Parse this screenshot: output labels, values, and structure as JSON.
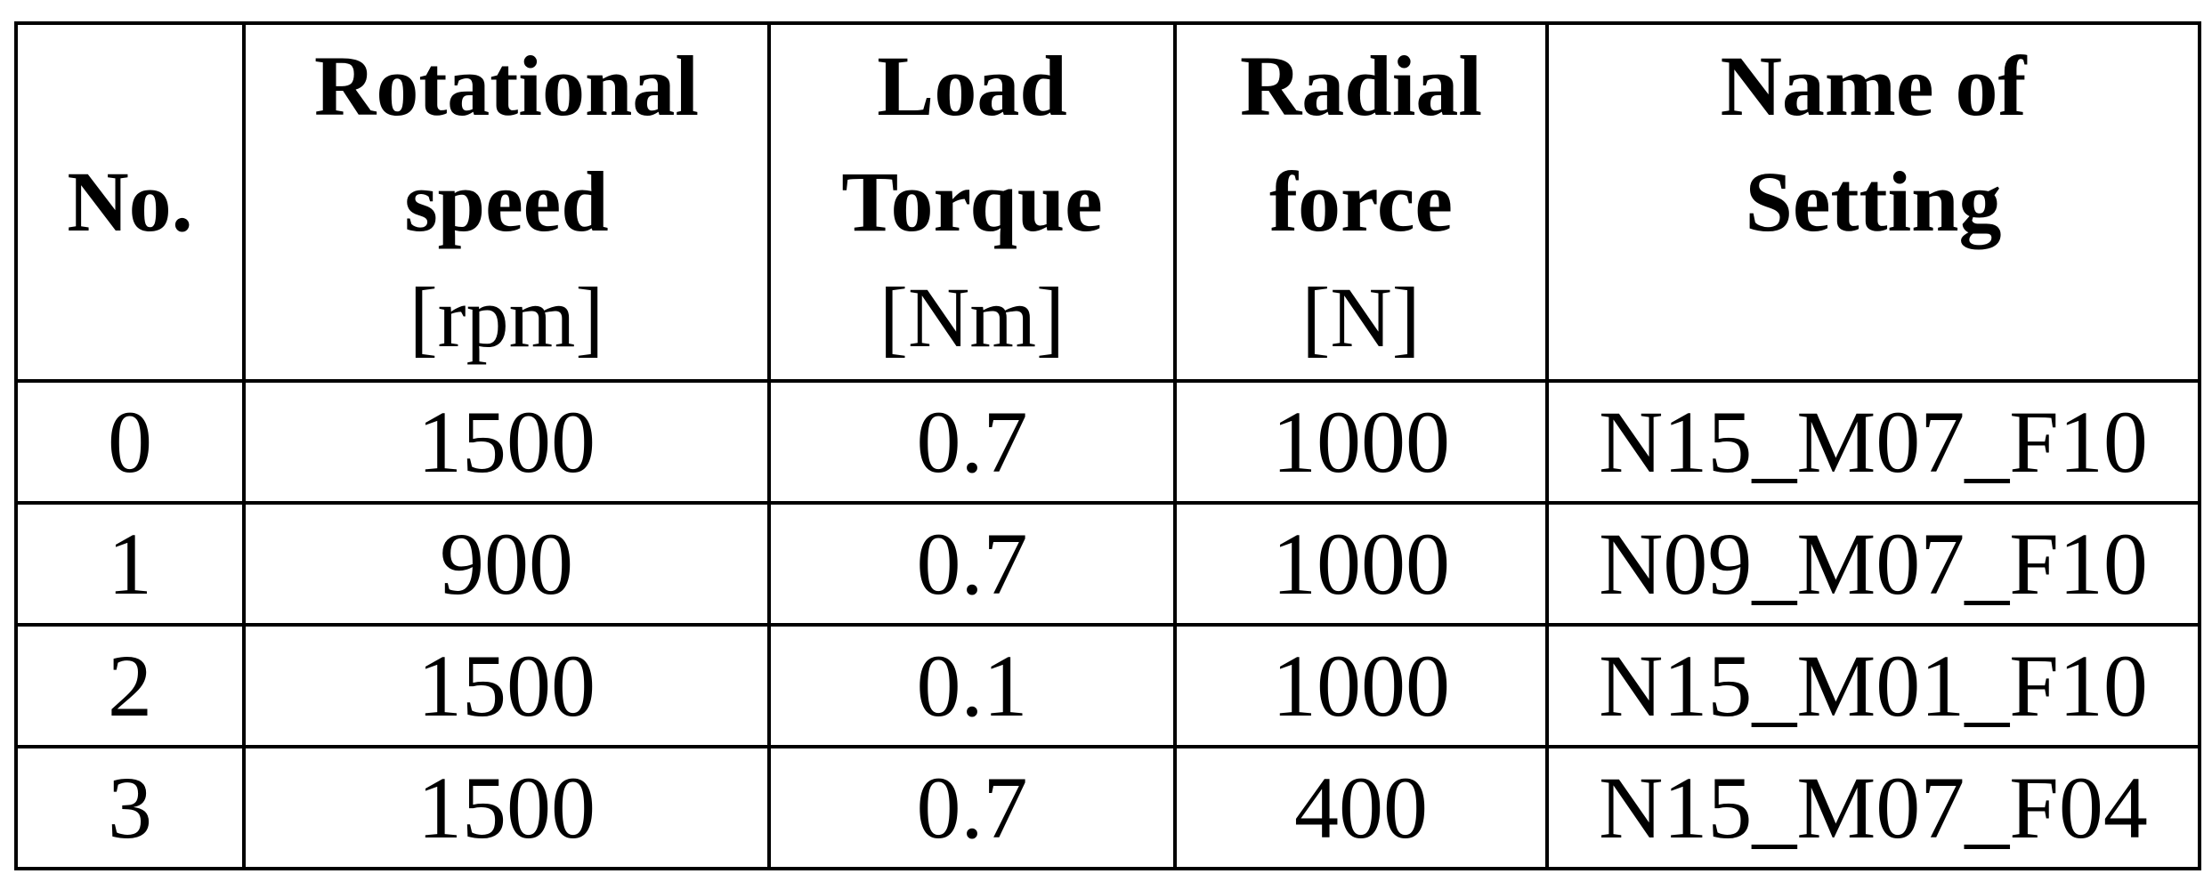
{
  "table": {
    "headers": {
      "no": "No.",
      "speed": {
        "line1": "Rotational",
        "line2": "speed",
        "unit": "[rpm]"
      },
      "torque": {
        "line1": "Load",
        "line2": "Torque",
        "unit": "[Nm]"
      },
      "force": {
        "line1": "Radial",
        "line2": "force",
        "unit": "[N]"
      },
      "name": {
        "line1": "Name of",
        "line2": "Setting"
      }
    },
    "rows": [
      {
        "no": "0",
        "speed": "1500",
        "torque": "0.7",
        "force": "1000",
        "name": "N15_M07_F10"
      },
      {
        "no": "1",
        "speed": "900",
        "torque": "0.7",
        "force": "1000",
        "name": "N09_M07_F10"
      },
      {
        "no": "2",
        "speed": "1500",
        "torque": "0.1",
        "force": "1000",
        "name": "N15_M01_F10"
      },
      {
        "no": "3",
        "speed": "1500",
        "torque": "0.7",
        "force": "400",
        "name": "N15_M07_F04"
      }
    ]
  }
}
